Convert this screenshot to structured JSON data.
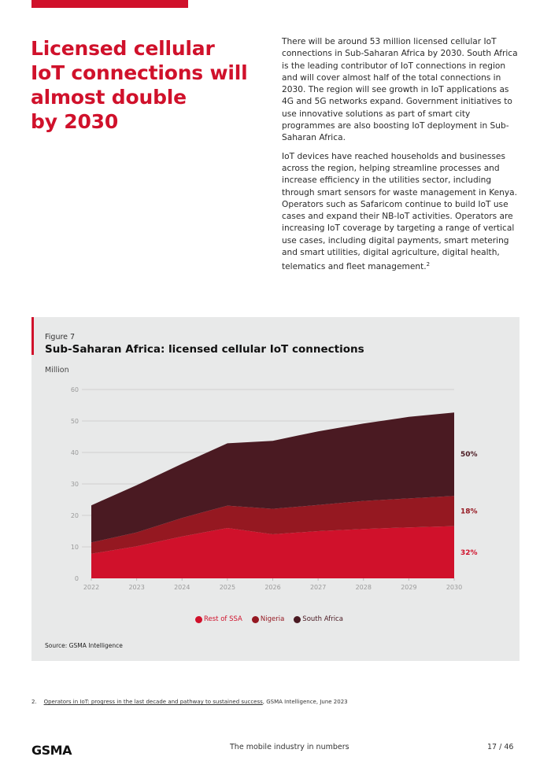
{
  "page": {
    "headline_lines": [
      "Licensed cellular",
      "IoT connections will",
      "almost double",
      "by 2030"
    ],
    "paragraphs": [
      "There will be around 53 million licensed cellular IoT connections in Sub-Saharan Africa by 2030. South Africa is the leading contributor of IoT connections in region and will cover almost half of the total connections in 2030. The region will see growth in IoT applications as 4G and 5G networks expand. Government initiatives to use innovative solutions as part of smart city programmes are also boosting IoT deployment in Sub-Saharan Africa.",
      "IoT devices have reached households and businesses across the region, helping streamline processes and increase efficiency in the utilities sector, including through smart sensors for waste management in Kenya. Operators such as Safaricom continue to build IoT use cases and expand their NB-IoT activities. Operators are increasing IoT coverage by targeting a range of vertical use cases, including digital payments, smart metering and smart utilities, digital agriculture, digital health, telematics and fleet management."
    ],
    "paragraph2_footnote_ref": "2",
    "footnote": {
      "number": "2.",
      "link_text": "Operators in IoT: progress in the last decade and pathway to sustained success",
      "rest_text": ", GSMA Intelligence, June 2023"
    },
    "footer": {
      "logo": "GSMA",
      "title": "The mobile industry in numbers",
      "page": "17 / 46"
    },
    "colors": {
      "accent": "#d0112b",
      "panel_bg": "#e8e9e9"
    }
  },
  "figure": {
    "label": "Figure 7",
    "title": "Sub-Saharan Africa: licensed cellular IoT connections",
    "source": "Source: GSMA Intelligence"
  },
  "chart_data": {
    "type": "area",
    "stacked": true,
    "title": "Sub-Saharan Africa: licensed cellular IoT connections",
    "ylabel": "Million",
    "xlabel": "",
    "categories": [
      "2022",
      "2023",
      "2024",
      "2025",
      "2026",
      "2027",
      "2028",
      "2029",
      "2030"
    ],
    "ylim": [
      0,
      60
    ],
    "yticks": [
      0,
      10,
      20,
      30,
      40,
      50,
      60
    ],
    "grid": true,
    "legend_position": "bottom-center",
    "series": [
      {
        "name": "Rest of SSA",
        "color": "#d0112b",
        "values": [
          7.8,
          10.2,
          13.3,
          16.0,
          14.0,
          15.0,
          15.7,
          16.2,
          16.6
        ]
      },
      {
        "name": "Nigeria",
        "color": "#951821",
        "values": [
          3.6,
          4.4,
          5.9,
          7.1,
          8.1,
          8.3,
          8.9,
          9.2,
          9.6
        ]
      },
      {
        "name": "South Africa",
        "color": "#4a1a22",
        "values": [
          11.8,
          15.0,
          17.2,
          19.8,
          21.6,
          23.4,
          24.6,
          25.9,
          26.5
        ]
      }
    ],
    "end_labels": [
      {
        "series": "South Africa",
        "text": "50%",
        "color": "#4a1a22"
      },
      {
        "series": "Nigeria",
        "text": "18%",
        "color": "#951821"
      },
      {
        "series": "Rest of SSA",
        "text": "32%",
        "color": "#d0112b"
      }
    ],
    "tick_color": "#9a9a9a",
    "grid_color": "#cfd0d0"
  }
}
